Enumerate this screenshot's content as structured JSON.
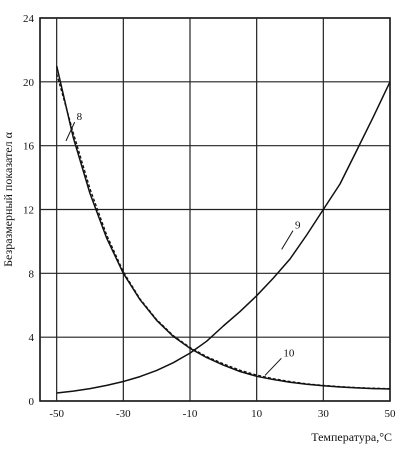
{
  "chart_data": {
    "type": "line",
    "title": "",
    "xlabel": "Температура,°C",
    "ylabel": "Безразмерный показател α",
    "xlim": [
      -55,
      50
    ],
    "ylim": [
      0,
      24
    ],
    "x_ticks": [
      -50,
      -30,
      -10,
      10,
      30,
      50
    ],
    "y_ticks": [
      0,
      4,
      8,
      12,
      16,
      20,
      24
    ],
    "x_tick_labels": [
      "-50",
      "-30",
      "-10",
      "10",
      "30",
      "50"
    ],
    "y_tick_labels": [
      "0",
      "4",
      "8",
      "12",
      "16",
      "20",
      "24"
    ],
    "grid": true,
    "series": [
      {
        "name": "8",
        "style": "solid",
        "x": [
          -50,
          -45,
          -40,
          -35,
          -30,
          -25,
          -20,
          -15,
          -10,
          -5,
          0,
          5,
          10,
          15,
          20,
          25,
          30,
          35,
          40,
          45,
          50
        ],
        "values": [
          21.0,
          16.5,
          13.0,
          10.2,
          8.0,
          6.35,
          5.05,
          4.05,
          3.3,
          2.72,
          2.25,
          1.85,
          1.55,
          1.35,
          1.18,
          1.05,
          0.95,
          0.88,
          0.82,
          0.78,
          0.75
        ]
      },
      {
        "name": "10",
        "style": "dashed",
        "x": [
          -50,
          -45,
          -40,
          -35,
          -30,
          -25,
          -20,
          -15,
          -10,
          -5,
          0,
          5,
          10,
          15,
          20,
          25,
          30,
          35,
          40,
          45,
          50
        ],
        "values": [
          20.5,
          16.8,
          13.3,
          10.4,
          8.1,
          6.4,
          5.1,
          4.1,
          3.35,
          2.78,
          2.33,
          1.93,
          1.62,
          1.4,
          1.22,
          1.08,
          0.98,
          0.9,
          0.84,
          0.8,
          0.77
        ]
      },
      {
        "name": "9",
        "style": "solid",
        "x": [
          -50,
          -45,
          -40,
          -35,
          -30,
          -25,
          -20,
          -15,
          -10,
          -5,
          0,
          5,
          10,
          15,
          20,
          25,
          30,
          35,
          40,
          45,
          50
        ],
        "values": [
          0.5,
          0.62,
          0.78,
          0.98,
          1.22,
          1.53,
          1.92,
          2.4,
          3.0,
          3.75,
          4.7,
          5.6,
          6.6,
          7.7,
          8.9,
          10.4,
          12.0,
          13.6,
          15.7,
          17.8,
          20.0
        ]
      }
    ],
    "annotations": [
      {
        "text": "8",
        "x": -44,
        "y": 17.6
      },
      {
        "text": "9",
        "x": 21.5,
        "y": 10.8
      },
      {
        "text": "10",
        "x": 18,
        "y": 2.8
      }
    ]
  }
}
